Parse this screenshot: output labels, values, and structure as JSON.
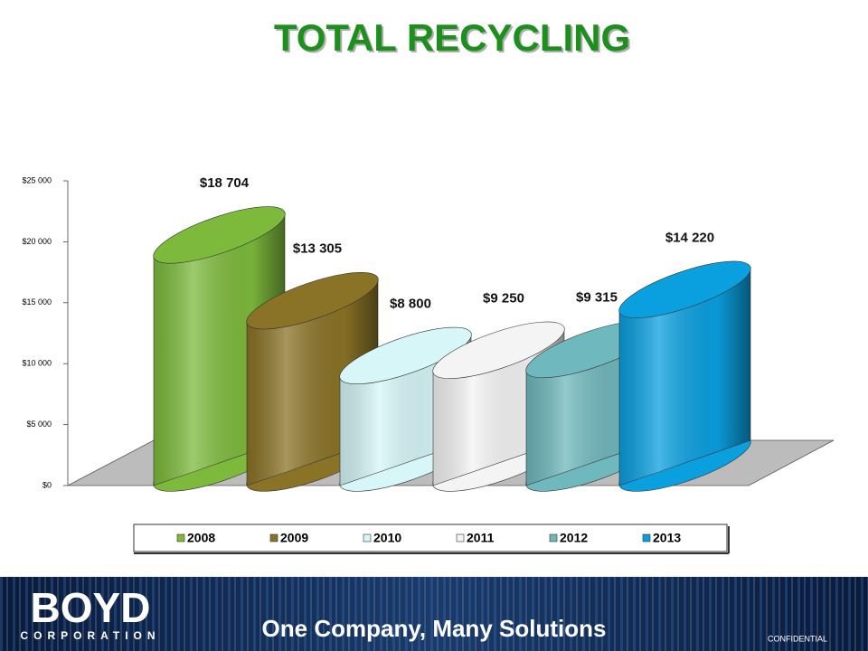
{
  "chart_data": {
    "type": "bar",
    "title": "TOTAL RECYCLING",
    "series": [
      {
        "name": "2008",
        "color": "#7dba3c",
        "values": [
          18704
        ],
        "value_labels": [
          "$18 704"
        ]
      },
      {
        "name": "2009",
        "color": "#8a7326",
        "values": [
          13305
        ],
        "value_labels": [
          "$13 305"
        ]
      },
      {
        "name": "2010",
        "color": "#d6f6f8",
        "values": [
          8800
        ],
        "value_labels": [
          "$8 800"
        ]
      },
      {
        "name": "2011",
        "color": "#f4f4f4",
        "values": [
          9250
        ],
        "value_labels": [
          "$9 250"
        ]
      },
      {
        "name": "2012",
        "color": "#6fb8bd",
        "values": [
          9315
        ],
        "value_labels": [
          "$9 315"
        ]
      },
      {
        "name": "2013",
        "color": "#0aa0e0",
        "values": [
          14220
        ],
        "value_labels": [
          "$14 220"
        ]
      }
    ],
    "ylim": [
      0,
      25000
    ],
    "yticks": [
      {
        "value": 0,
        "label": "$0"
      },
      {
        "value": 5000,
        "label": "$5 000"
      },
      {
        "value": 10000,
        "label": "$10 000"
      },
      {
        "value": 15000,
        "label": "$15 000"
      },
      {
        "value": 20000,
        "label": "$20 000"
      },
      {
        "value": 25000,
        "label": "$25 000"
      }
    ],
    "legend": "bottom"
  },
  "footer": {
    "logo": "BOYD",
    "logo_sub": "CORPORATION",
    "slogan": "One Company, Many Solutions",
    "note": "CONFIDENTIAL"
  }
}
